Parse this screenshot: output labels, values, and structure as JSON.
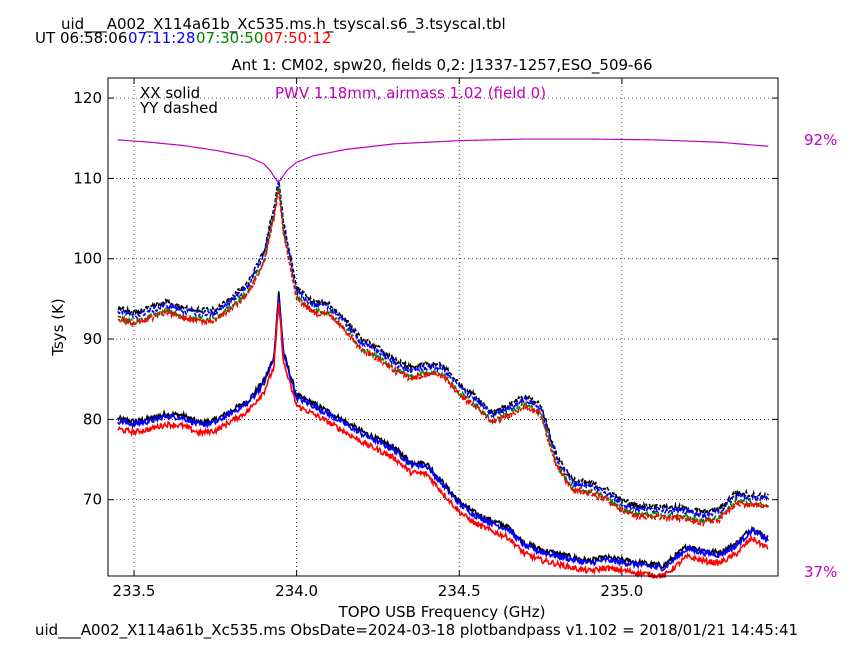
{
  "header": {
    "file_title": "uid___A002_X114a61b_Xc535.ms.h_tsyscal.s6_3.tsyscal.tbl",
    "ut_label": "UT",
    "times": [
      {
        "text": "06:58:06",
        "color": "#000000"
      },
      {
        "text": "07:11:28",
        "color": "#0000ff"
      },
      {
        "text": "07:30:50",
        "color": "#008000"
      },
      {
        "text": "07:50:12",
        "color": "#ff0000"
      }
    ]
  },
  "footer": {
    "text": "uid___A002_X114a61b_Xc535.ms  ObsDate=2024-03-18   plotbandpass v1.102 = 2018/01/21 14:45:41"
  },
  "chart_data": {
    "type": "line",
    "title": "Ant 1: CM02,  spw20,  fields 0,2: J1337-1257,ESO_509-66",
    "xlabel": "TOPO USB Frequency (GHz)",
    "ylabel": "Tsys (K)",
    "xlim": [
      233.42,
      235.48
    ],
    "ylim": [
      60.5,
      122.5
    ],
    "x_ticks": [
      233.5,
      234.0,
      234.5,
      235.0
    ],
    "x_tick_labels": [
      "233.5",
      "234.0",
      "234.5",
      "235.0"
    ],
    "y_ticks": [
      70,
      80,
      90,
      100,
      110,
      120
    ],
    "y_tick_labels": [
      "70",
      "80",
      "90",
      "100",
      "110",
      "120"
    ],
    "grid": true,
    "legend": [
      "XX solid",
      "YY dashed"
    ],
    "legend_placement": "top-left",
    "annotation": {
      "text": "PWV 1.18mm, airmass 1.02 (field 0)",
      "color": "#c000c0"
    },
    "transmission_axis": {
      "top_label": "92%",
      "bottom_label": "37%",
      "color": "#c000c0"
    },
    "colors": {
      "black": "#000000",
      "blue": "#0000ff",
      "green": "#008000",
      "red": "#ff0000",
      "atm": "#c000c0"
    },
    "series": [
      {
        "pol": "XX",
        "style": "solid",
        "color": "#000000",
        "offset": 0.3,
        "x": [
          233.45,
          233.5,
          233.55,
          233.6,
          233.65,
          233.7,
          233.75,
          233.8,
          233.85,
          233.9,
          233.93,
          233.945,
          233.96,
          234.0,
          234.05,
          234.1,
          234.2,
          234.3,
          234.35,
          234.4,
          234.45,
          234.5,
          234.55,
          234.6,
          234.65,
          234.7,
          234.75,
          234.8,
          234.85,
          234.9,
          234.95,
          235.0,
          235.05,
          235.1,
          235.13,
          235.15,
          235.2,
          235.25,
          235.3,
          235.35,
          235.4,
          235.45
        ],
        "values": [
          79.8,
          79.4,
          79.8,
          80.4,
          80.2,
          79.3,
          79.6,
          80.8,
          82.0,
          84.5,
          87.5,
          95.5,
          88.0,
          82.7,
          81.7,
          80.6,
          78.2,
          76.2,
          74.4,
          74.2,
          71.8,
          69.5,
          68.0,
          67.1,
          66.3,
          64.3,
          63.5,
          63.0,
          62.5,
          62.1,
          62.5,
          62.2,
          61.9,
          61.6,
          61.5,
          62.2,
          63.9,
          63.4,
          63.1,
          64.2,
          66.2,
          64.9
        ]
      },
      {
        "pol": "XX",
        "style": "solid",
        "color": "#0000ff",
        "offset": 0.0,
        "x": [
          233.45,
          233.5,
          233.55,
          233.6,
          233.65,
          233.7,
          233.75,
          233.8,
          233.85,
          233.9,
          233.93,
          233.945,
          233.96,
          234.0,
          234.05,
          234.1,
          234.2,
          234.3,
          234.35,
          234.4,
          234.45,
          234.5,
          234.55,
          234.6,
          234.65,
          234.7,
          234.75,
          234.8,
          234.85,
          234.9,
          234.95,
          235.0,
          235.05,
          235.1,
          235.13,
          235.15,
          235.2,
          235.25,
          235.3,
          235.35,
          235.4,
          235.45
        ],
        "values": [
          79.8,
          79.4,
          79.8,
          80.4,
          80.2,
          79.3,
          79.6,
          80.8,
          82.0,
          84.5,
          87.5,
          95.5,
          88.0,
          82.7,
          81.7,
          80.6,
          78.2,
          76.2,
          74.4,
          74.2,
          71.8,
          69.5,
          68.0,
          67.1,
          66.3,
          64.3,
          63.5,
          63.0,
          62.5,
          62.1,
          62.5,
          62.2,
          61.9,
          61.6,
          61.5,
          62.2,
          63.9,
          63.4,
          63.1,
          64.2,
          66.2,
          64.9
        ]
      },
      {
        "pol": "XX",
        "style": "solid",
        "color": "#ff0000",
        "offset": -1.0,
        "x": [
          233.45,
          233.5,
          233.55,
          233.6,
          233.65,
          233.7,
          233.75,
          233.8,
          233.85,
          233.9,
          233.93,
          233.945,
          233.96,
          234.0,
          234.05,
          234.1,
          234.2,
          234.3,
          234.35,
          234.4,
          234.45,
          234.5,
          234.55,
          234.6,
          234.65,
          234.7,
          234.75,
          234.8,
          234.85,
          234.9,
          234.95,
          235.0,
          235.05,
          235.1,
          235.13,
          235.15,
          235.2,
          235.25,
          235.3,
          235.35,
          235.4,
          235.45
        ],
        "values": [
          79.8,
          79.4,
          79.8,
          80.4,
          80.2,
          79.3,
          79.6,
          80.8,
          82.0,
          84.5,
          87.5,
          95.5,
          88.0,
          82.7,
          81.7,
          80.6,
          78.2,
          76.2,
          74.4,
          74.2,
          71.8,
          69.5,
          68.0,
          67.1,
          66.3,
          64.3,
          63.5,
          63.0,
          62.5,
          62.1,
          62.5,
          62.2,
          61.9,
          61.6,
          61.5,
          62.2,
          63.9,
          63.4,
          63.1,
          64.2,
          66.2,
          64.9
        ]
      },
      {
        "pol": "YY",
        "style": "dashed",
        "color": "#000000",
        "offset": 0.4,
        "x": [
          233.45,
          233.5,
          233.55,
          233.6,
          233.65,
          233.7,
          233.75,
          233.8,
          233.85,
          233.9,
          233.93,
          233.945,
          233.96,
          234.0,
          234.05,
          234.1,
          234.15,
          234.2,
          234.25,
          234.3,
          234.35,
          234.4,
          234.45,
          234.5,
          234.55,
          234.6,
          234.65,
          234.7,
          234.75,
          234.8,
          234.85,
          234.9,
          234.95,
          235.0,
          235.05,
          235.1,
          235.15,
          235.2,
          235.25,
          235.3,
          235.35,
          235.4,
          235.45
        ],
        "values": [
          93.5,
          92.8,
          93.5,
          94.2,
          93.5,
          93.2,
          93.2,
          94.8,
          96.5,
          100.5,
          106.0,
          109.5,
          104.0,
          96.0,
          94.2,
          94.0,
          92.0,
          89.5,
          88.5,
          87.0,
          86.0,
          86.5,
          86.3,
          84.0,
          82.5,
          80.5,
          81.3,
          82.5,
          81.5,
          75.0,
          72.0,
          71.7,
          71.0,
          69.5,
          68.8,
          68.8,
          68.7,
          68.5,
          68.0,
          68.5,
          70.5,
          70.2,
          70.0
        ]
      },
      {
        "pol": "YY",
        "style": "dashed",
        "color": "#0000ff",
        "offset": 0.0,
        "x": [
          233.45,
          233.5,
          233.55,
          233.6,
          233.65,
          233.7,
          233.75,
          233.8,
          233.85,
          233.9,
          233.93,
          233.945,
          233.96,
          234.0,
          234.05,
          234.1,
          234.15,
          234.2,
          234.25,
          234.3,
          234.35,
          234.4,
          234.45,
          234.5,
          234.55,
          234.6,
          234.65,
          234.7,
          234.75,
          234.8,
          234.85,
          234.9,
          234.95,
          235.0,
          235.05,
          235.1,
          235.15,
          235.2,
          235.25,
          235.3,
          235.35,
          235.4,
          235.45
        ],
        "values": [
          93.5,
          92.8,
          93.5,
          94.2,
          93.5,
          93.2,
          93.2,
          94.8,
          96.5,
          100.5,
          106.0,
          109.5,
          104.0,
          96.0,
          94.2,
          94.0,
          92.0,
          89.5,
          88.5,
          87.0,
          86.0,
          86.5,
          86.3,
          84.0,
          82.5,
          80.5,
          81.3,
          82.5,
          81.5,
          75.0,
          72.0,
          71.7,
          71.0,
          69.5,
          68.8,
          68.8,
          68.7,
          68.5,
          68.0,
          68.5,
          70.5,
          70.2,
          70.0
        ]
      },
      {
        "pol": "YY",
        "style": "dashed",
        "color": "#008000",
        "offset": -0.7,
        "x": [
          233.45,
          233.5,
          233.55,
          233.6,
          233.65,
          233.7,
          233.75,
          233.8,
          233.85,
          233.9,
          233.93,
          233.945,
          233.96,
          234.0,
          234.05,
          234.1,
          234.15,
          234.2,
          234.25,
          234.3,
          234.35,
          234.4,
          234.45,
          234.5,
          234.55,
          234.6,
          234.65,
          234.7,
          234.75,
          234.8,
          234.85,
          234.9,
          234.95,
          235.0,
          235.05,
          235.1,
          235.15,
          235.2,
          235.25,
          235.3,
          235.35,
          235.4,
          235.45
        ],
        "values": [
          93.5,
          92.8,
          93.5,
          94.2,
          93.5,
          93.2,
          93.2,
          94.8,
          96.5,
          100.5,
          106.0,
          110.0,
          104.0,
          96.0,
          94.2,
          94.0,
          92.0,
          89.5,
          88.5,
          87.0,
          86.0,
          86.5,
          86.3,
          84.0,
          82.5,
          80.5,
          81.3,
          82.5,
          81.5,
          75.0,
          72.0,
          71.7,
          71.0,
          69.5,
          68.8,
          68.8,
          68.7,
          68.5,
          68.0,
          68.5,
          70.5,
          70.2,
          70.0
        ]
      },
      {
        "pol": "YY",
        "style": "dashed",
        "color": "#ff0000",
        "offset": -0.9,
        "x": [
          233.45,
          233.5,
          233.55,
          233.6,
          233.65,
          233.7,
          233.75,
          233.8,
          233.85,
          233.9,
          233.93,
          233.945,
          233.96,
          234.0,
          234.05,
          234.1,
          234.15,
          234.2,
          234.25,
          234.3,
          234.35,
          234.4,
          234.45,
          234.5,
          234.55,
          234.6,
          234.65,
          234.7,
          234.75,
          234.8,
          234.85,
          234.9,
          234.95,
          235.0,
          235.05,
          235.1,
          235.15,
          235.2,
          235.25,
          235.3,
          235.35,
          235.4,
          235.45
        ],
        "values": [
          93.5,
          92.8,
          93.5,
          94.2,
          93.5,
          93.2,
          93.2,
          94.8,
          96.5,
          100.5,
          106.0,
          109.5,
          104.0,
          96.0,
          94.2,
          94.0,
          92.0,
          89.5,
          88.5,
          87.0,
          86.0,
          86.5,
          86.3,
          84.0,
          82.5,
          80.5,
          81.3,
          82.5,
          81.5,
          75.0,
          72.0,
          71.7,
          71.0,
          69.5,
          68.8,
          68.8,
          68.7,
          68.5,
          68.0,
          68.5,
          70.5,
          70.2,
          70.0
        ]
      },
      {
        "pol": "atmosphere",
        "style": "solid",
        "color": "#c000c0",
        "offset": 0.0,
        "x": [
          233.45,
          233.55,
          233.65,
          233.75,
          233.85,
          233.9,
          233.92,
          233.935,
          233.945,
          233.955,
          233.97,
          234.0,
          234.05,
          234.15,
          234.3,
          234.5,
          234.7,
          234.9,
          235.1,
          235.3,
          235.45
        ],
        "values": [
          114.8,
          114.5,
          114.1,
          113.5,
          112.7,
          111.8,
          110.9,
          109.9,
          109.4,
          110.1,
          111.0,
          112.0,
          112.8,
          113.6,
          114.3,
          114.7,
          114.9,
          114.9,
          114.8,
          114.5,
          114.0
        ]
      }
    ]
  }
}
